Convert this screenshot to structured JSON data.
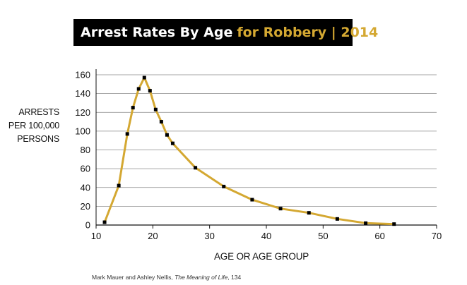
{
  "title": {
    "main": "Arrest Rates By Age",
    "accent": "for Robbery | 2014"
  },
  "colors": {
    "line": "#d4a832",
    "accent": "#d4a832",
    "marker": "#000000",
    "gridline": "#888888",
    "title_bg": "#000000"
  },
  "source": {
    "prefix": "Mark Mauer and Ashley Nellis, ",
    "book": "The Meaning of Life",
    "suffix": ", 134"
  },
  "chart_data": {
    "type": "line",
    "title": "Arrest Rates By Age for Robbery | 2014",
    "xlabel": "AGE OR AGE GROUP",
    "ylabel_lines": [
      "ARRESTS",
      "PER 100,000",
      "PERSONS"
    ],
    "xlim": [
      10,
      70
    ],
    "ylim": [
      0,
      160
    ],
    "xticks": [
      10,
      20,
      30,
      40,
      50,
      60,
      70
    ],
    "yticks": [
      0,
      20,
      40,
      60,
      80,
      100,
      120,
      140,
      160
    ],
    "grid": "horizontal",
    "series": [
      {
        "points": [
          [
            11.5,
            3
          ],
          [
            14,
            42
          ],
          [
            15.5,
            97
          ],
          [
            16.5,
            125
          ],
          [
            17.5,
            145
          ],
          [
            18.5,
            157
          ],
          [
            19.5,
            143
          ],
          [
            20.5,
            123
          ],
          [
            21.5,
            110
          ],
          [
            22.5,
            96
          ],
          [
            23.5,
            87
          ],
          [
            27.5,
            61
          ],
          [
            32.5,
            41
          ],
          [
            37.5,
            27
          ],
          [
            42.5,
            17.5
          ],
          [
            47.5,
            13
          ],
          [
            52.5,
            6.5
          ],
          [
            57.5,
            2
          ],
          [
            62.5,
            1
          ]
        ]
      }
    ]
  }
}
